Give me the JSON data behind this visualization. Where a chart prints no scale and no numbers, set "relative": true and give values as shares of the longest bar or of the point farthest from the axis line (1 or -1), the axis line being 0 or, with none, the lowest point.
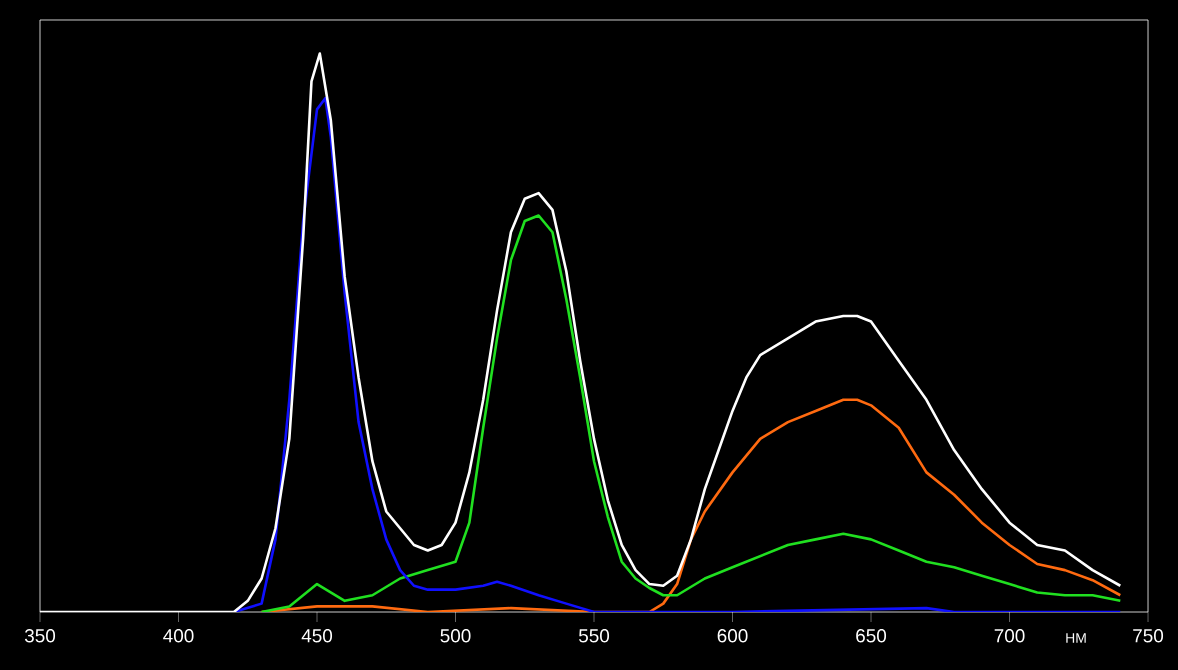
{
  "chart_data": {
    "type": "line",
    "relative": true,
    "xlabel": "НМ",
    "xlim": [
      350,
      750
    ],
    "xticks": [
      350,
      400,
      450,
      500,
      550,
      600,
      650,
      700,
      750
    ],
    "grid": false,
    "marker": "none",
    "line_style": "solid",
    "series": [
      {
        "color": "#ff6a10",
        "x": [
          430,
          450,
          470,
          490,
          520,
          550,
          570,
          575,
          580,
          585,
          590,
          600,
          610,
          620,
          630,
          640,
          645,
          650,
          660,
          670,
          680,
          690,
          700,
          710,
          720,
          730,
          740
        ],
        "values": [
          0,
          0.01,
          0.01,
          0,
          0.007,
          0,
          0,
          0.015,
          0.05,
          0.13,
          0.18,
          0.25,
          0.31,
          0.34,
          0.36,
          0.38,
          0.38,
          0.37,
          0.33,
          0.25,
          0.21,
          0.16,
          0.12,
          0.086,
          0.075,
          0.057,
          0.03
        ]
      },
      {
        "color": "#20e020",
        "x": [
          430,
          440,
          450,
          460,
          470,
          480,
          490,
          500,
          505,
          510,
          515,
          520,
          525,
          530,
          535,
          540,
          545,
          550,
          555,
          560,
          565,
          570,
          575,
          580,
          590,
          600,
          610,
          620,
          630,
          640,
          650,
          660,
          670,
          680,
          690,
          700,
          710,
          720,
          730,
          740
        ],
        "values": [
          0,
          0.01,
          0.05,
          0.02,
          0.03,
          0.06,
          0.075,
          0.09,
          0.16,
          0.33,
          0.49,
          0.63,
          0.7,
          0.71,
          0.68,
          0.56,
          0.42,
          0.27,
          0.17,
          0.09,
          0.06,
          0.043,
          0.03,
          0.03,
          0.06,
          0.08,
          0.1,
          0.12,
          0.13,
          0.14,
          0.13,
          0.11,
          0.09,
          0.08,
          0.065,
          0.05,
          0.035,
          0.03,
          0.03,
          0.02
        ]
      },
      {
        "color": "#1010ff",
        "x": [
          420,
          430,
          435,
          440,
          445,
          450,
          453,
          455,
          460,
          465,
          470,
          475,
          480,
          485,
          490,
          500,
          510,
          515,
          520,
          530,
          540,
          550,
          560,
          600,
          670,
          680,
          740
        ],
        "values": [
          0,
          0.015,
          0.13,
          0.38,
          0.7,
          0.9,
          0.92,
          0.85,
          0.57,
          0.34,
          0.22,
          0.13,
          0.075,
          0.047,
          0.04,
          0.04,
          0.047,
          0.054,
          0.047,
          0.03,
          0.015,
          0,
          0,
          0,
          0.007,
          0,
          0
        ]
      },
      {
        "color": "#ffffff",
        "x": [
          350,
          415,
          420,
          425,
          430,
          435,
          440,
          445,
          448,
          451,
          455,
          460,
          465,
          470,
          475,
          480,
          485,
          490,
          495,
          500,
          505,
          510,
          515,
          520,
          525,
          530,
          535,
          540,
          545,
          550,
          555,
          560,
          565,
          570,
          575,
          580,
          585,
          590,
          595,
          600,
          605,
          610,
          620,
          630,
          640,
          645,
          650,
          660,
          670,
          680,
          690,
          700,
          710,
          720,
          730,
          740
        ],
        "values": [
          0,
          0,
          0,
          0.02,
          0.06,
          0.15,
          0.31,
          0.67,
          0.95,
          1,
          0.88,
          0.6,
          0.42,
          0.27,
          0.18,
          0.15,
          0.12,
          0.11,
          0.12,
          0.16,
          0.25,
          0.38,
          0.54,
          0.68,
          0.74,
          0.75,
          0.72,
          0.61,
          0.45,
          0.31,
          0.2,
          0.12,
          0.075,
          0.05,
          0.047,
          0.065,
          0.13,
          0.22,
          0.29,
          0.36,
          0.42,
          0.46,
          0.49,
          0.52,
          0.53,
          0.53,
          0.52,
          0.45,
          0.38,
          0.29,
          0.22,
          0.16,
          0.12,
          0.11,
          0.075,
          0.047
        ]
      }
    ]
  }
}
